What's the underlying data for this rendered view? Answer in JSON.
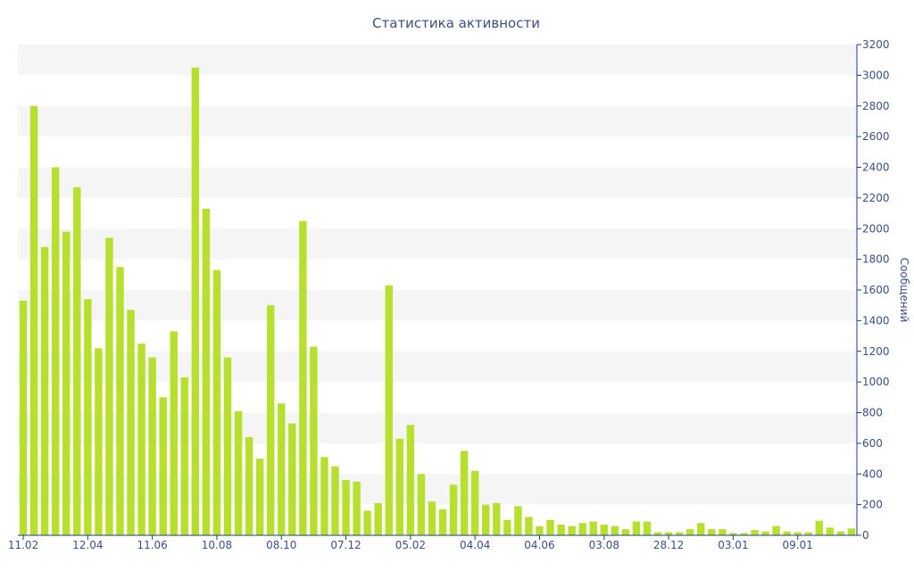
{
  "chart_data": {
    "type": "bar",
    "title": "Статистика активности",
    "ylabel": "Сообщений",
    "ylim": [
      0,
      3200
    ],
    "y_ticks": [
      0,
      200,
      400,
      600,
      800,
      1000,
      1200,
      1400,
      1600,
      1800,
      2000,
      2200,
      2400,
      2600,
      2800,
      3000,
      3200
    ],
    "grid": "alternating horizontal bands",
    "y_axis_side": "right",
    "bar_color": "#b7e02e",
    "x_tick_labels": [
      {
        "index": 0,
        "label": "11.02"
      },
      {
        "index": 6,
        "label": "12.04"
      },
      {
        "index": 12,
        "label": "11.06"
      },
      {
        "index": 18,
        "label": "10.08"
      },
      {
        "index": 24,
        "label": "08.10"
      },
      {
        "index": 30,
        "label": "07.12"
      },
      {
        "index": 36,
        "label": "05.02"
      },
      {
        "index": 42,
        "label": "04.04"
      },
      {
        "index": 48,
        "label": "04.06"
      },
      {
        "index": 54,
        "label": "03.08"
      },
      {
        "index": 60,
        "label": "28.12"
      },
      {
        "index": 66,
        "label": "03.01"
      },
      {
        "index": 72,
        "label": "09.01"
      }
    ],
    "values": [
      1530,
      2800,
      1880,
      2400,
      1980,
      2270,
      1540,
      1220,
      1940,
      1750,
      1470,
      1250,
      1160,
      900,
      1330,
      1030,
      3050,
      2130,
      1730,
      1160,
      810,
      640,
      500,
      1500,
      860,
      730,
      2050,
      1230,
      510,
      450,
      360,
      350,
      160,
      210,
      1630,
      630,
      720,
      400,
      220,
      170,
      330,
      550,
      420,
      200,
      210,
      100,
      190,
      120,
      60,
      100,
      70,
      60,
      80,
      90,
      70,
      60,
      40,
      90,
      90,
      20,
      20,
      20,
      40,
      80,
      40,
      40,
      15,
      15,
      35,
      25,
      60,
      25,
      20,
      20,
      95,
      50,
      25,
      45
    ]
  }
}
